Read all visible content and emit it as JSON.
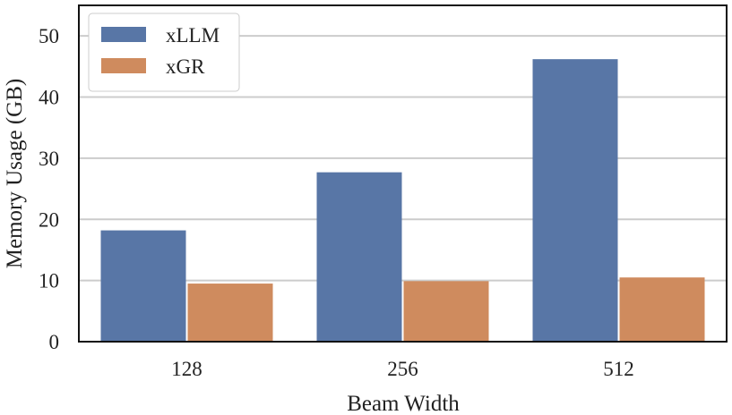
{
  "chart_data": {
    "type": "bar",
    "title": "",
    "xlabel": "Beam Width",
    "ylabel": "Memory Usage (GB)",
    "categories": [
      "128",
      "256",
      "512"
    ],
    "series": [
      {
        "name": "xLLM",
        "color": "#5876a6",
        "values": [
          18.2,
          27.7,
          46.2
        ]
      },
      {
        "name": "xGR",
        "color": "#cf8b5e",
        "values": [
          9.5,
          9.9,
          10.5
        ]
      }
    ],
    "ylim": [
      0,
      55
    ],
    "yticks": [
      "0",
      "10",
      "20",
      "30",
      "40",
      "50"
    ],
    "grid": true,
    "legend_position": "top-left"
  }
}
